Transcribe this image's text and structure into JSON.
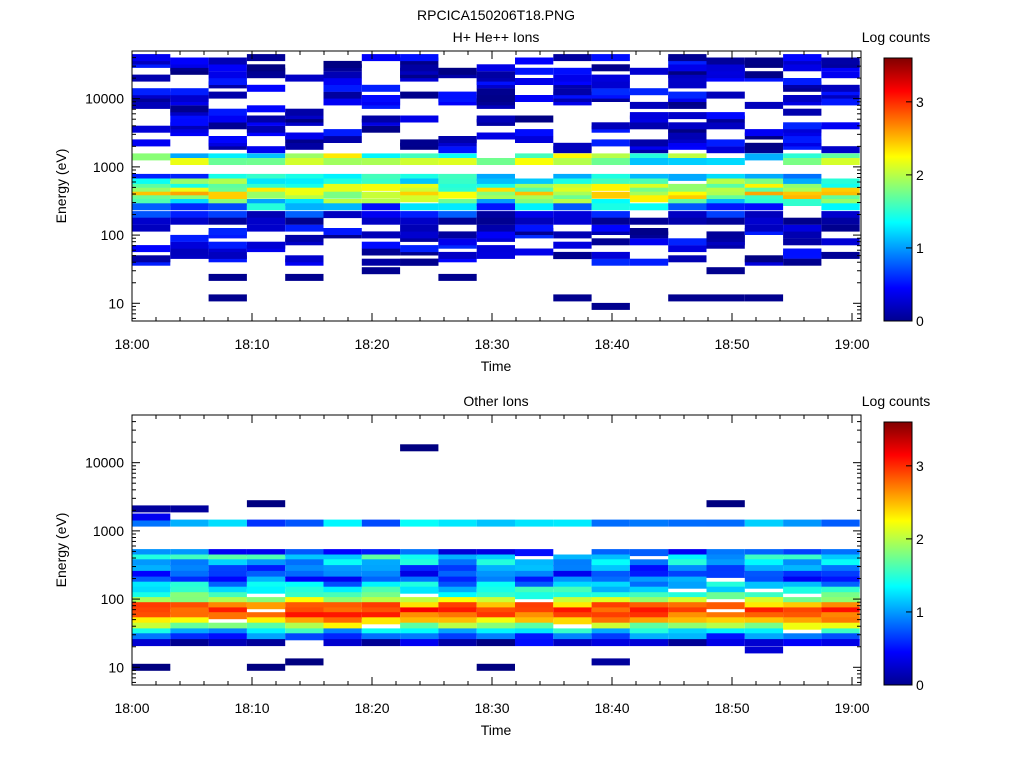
{
  "page_title": "RPCICA150206T18.PNG",
  "colorbar_label": "Log counts",
  "colorbar_ticks": [
    "0",
    "1",
    "2",
    "3"
  ],
  "chart_data": [
    {
      "type": "heatmap",
      "title": "H+ He++ Ions",
      "xlabel": "Time",
      "ylabel": "Energy (eV)",
      "x_ticks": [
        "18:00",
        "18:10",
        "18:20",
        "18:30",
        "18:40",
        "18:50",
        "19:00"
      ],
      "y_ticks": [
        "10",
        "100",
        "1000",
        "10000"
      ],
      "y_scale": "log",
      "ylim": [
        5.5,
        50000
      ],
      "xlim": [
        "18:00",
        "19:00"
      ],
      "zlim": [
        0,
        3.6
      ],
      "time_bins": 19,
      "bands": [
        {
          "e": 1400,
          "lo": 1.0,
          "hi": 2.4
        },
        {
          "e": 1200,
          "lo": 1.1,
          "hi": 2.3
        },
        {
          "e": 700,
          "lo": 0.5,
          "hi": 1.6
        },
        {
          "e": 600,
          "lo": 1.0,
          "hi": 2.1
        },
        {
          "e": 500,
          "lo": 1.2,
          "hi": 2.3
        },
        {
          "e": 440,
          "lo": 1.5,
          "hi": 2.5
        },
        {
          "e": 385,
          "lo": 1.7,
          "hi": 2.6
        },
        {
          "e": 340,
          "lo": 1.5,
          "hi": 2.5
        },
        {
          "e": 300,
          "lo": 1.0,
          "hi": 2.1
        },
        {
          "e": 260,
          "lo": 0.4,
          "hi": 1.5
        },
        {
          "e": 200,
          "lo": 0.1,
          "hi": 0.8
        },
        {
          "e": 160,
          "lo": 0.0,
          "hi": 0.4
        }
      ],
      "scattered": {
        "emin": 40,
        "emax": 40000,
        "zmax": 0.6
      },
      "low_blocks": [
        {
          "bins": [
            2
          ],
          "e": 12
        },
        {
          "bins": [
            2
          ],
          "e": 24
        },
        {
          "bins": [
            4
          ],
          "e": 24
        },
        {
          "bins": [
            6
          ],
          "e": 30
        },
        {
          "bins": [
            7
          ],
          "e": 40
        },
        {
          "bins": [
            8
          ],
          "e": 24
        },
        {
          "bins": [
            11
          ],
          "e": 50
        },
        {
          "bins": [
            11
          ],
          "e": 12
        },
        {
          "bins": [
            12
          ],
          "e": 9
        },
        {
          "bins": [
            14,
            15,
            16
          ],
          "e": 12
        },
        {
          "bins": [
            15
          ],
          "e": 30
        },
        {
          "bins": [
            17
          ],
          "e": 40
        }
      ]
    },
    {
      "type": "heatmap",
      "title": "Other Ions",
      "xlabel": "Time",
      "ylabel": "Energy (eV)",
      "x_ticks": [
        "18:00",
        "18:10",
        "18:20",
        "18:30",
        "18:40",
        "18:50",
        "19:00"
      ],
      "y_ticks": [
        "10",
        "100",
        "1000",
        "10000"
      ],
      "y_scale": "log",
      "ylim": [
        5.5,
        50000
      ],
      "xlim": [
        "18:00",
        "19:00"
      ],
      "zlim": [
        0,
        3.6
      ],
      "time_bins": 19,
      "bands": [
        {
          "e": 1300,
          "lo": 0.6,
          "hi": 1.4
        },
        {
          "e": 480,
          "lo": 0.3,
          "hi": 1.0
        },
        {
          "e": 400,
          "lo": 0.9,
          "hi": 1.7
        },
        {
          "e": 340,
          "lo": 0.7,
          "hi": 1.5
        },
        {
          "e": 280,
          "lo": 0.4,
          "hi": 1.2
        },
        {
          "e": 230,
          "lo": 0.3,
          "hi": 1.0
        },
        {
          "e": 190,
          "lo": 0.4,
          "hi": 1.2
        },
        {
          "e": 160,
          "lo": 0.7,
          "hi": 1.5
        },
        {
          "e": 135,
          "lo": 1.0,
          "hi": 1.7
        },
        {
          "e": 112,
          "lo": 1.3,
          "hi": 1.9
        },
        {
          "e": 95,
          "lo": 1.7,
          "hi": 2.3
        },
        {
          "e": 80,
          "lo": 2.3,
          "hi": 3.0
        },
        {
          "e": 67,
          "lo": 2.7,
          "hi": 3.2
        },
        {
          "e": 57,
          "lo": 2.6,
          "hi": 3.1
        },
        {
          "e": 48,
          "lo": 2.2,
          "hi": 2.8
        },
        {
          "e": 40,
          "lo": 1.6,
          "hi": 2.3
        },
        {
          "e": 33,
          "lo": 0.9,
          "hi": 1.6
        },
        {
          "e": 28,
          "lo": 0.4,
          "hi": 1.1
        },
        {
          "e": 23,
          "lo": 0.0,
          "hi": 0.5
        }
      ],
      "extras": [
        {
          "bins": [
            0
          ],
          "e": 1600,
          "z": 0.4
        },
        {
          "bins": [
            0,
            1
          ],
          "e": 2100,
          "z": 0.1
        },
        {
          "bins": [
            3,
            15
          ],
          "e": 2500,
          "z": 0.0
        },
        {
          "bins": [
            7
          ],
          "e": 16500,
          "z": 0.0
        },
        {
          "bins": [
            0,
            3,
            9
          ],
          "e": 10,
          "z": 0.0
        },
        {
          "bins": [
            4
          ],
          "e": 12,
          "z": 0.0
        },
        {
          "bins": [
            12
          ],
          "e": 12,
          "z": 0.1
        },
        {
          "bins": [
            16
          ],
          "e": 18,
          "z": 0.3
        }
      ]
    }
  ]
}
